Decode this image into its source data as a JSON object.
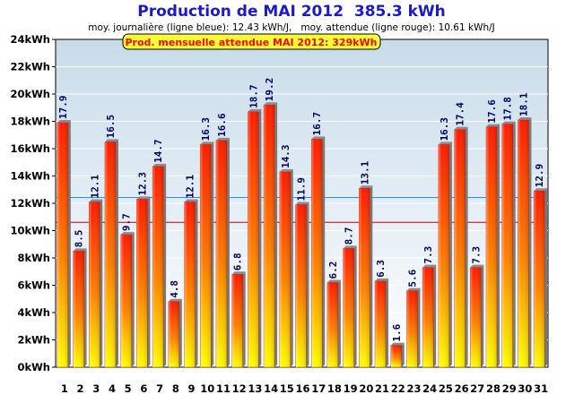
{
  "chart_data": {
    "type": "bar",
    "title": "Production de MAI 2012  385.3 kWh",
    "subtitle": "moy. journalière (ligne bleue): 12.43 kWh/J,   moy. attendue (ligne rouge): 10.61 kWh/J",
    "badge": "Prod. mensuelle attendue MAI 2012: 329kWh",
    "y_unit": "kWh",
    "ylim": [
      0,
      24
    ],
    "y_ticks": [
      "0kWh",
      "2kWh",
      "4kWh",
      "6kWh",
      "8kWh",
      "10kWh",
      "12kWh",
      "14kWh",
      "16kWh",
      "18kWh",
      "20kWh",
      "22kWh",
      "24kWh"
    ],
    "categories": [
      "1",
      "2",
      "3",
      "4",
      "5",
      "6",
      "7",
      "8",
      "9",
      "10",
      "11",
      "12",
      "13",
      "14",
      "15",
      "16",
      "17",
      "18",
      "19",
      "20",
      "21",
      "22",
      "23",
      "24",
      "25",
      "26",
      "27",
      "28",
      "29",
      "30",
      "31"
    ],
    "values": [
      17.9,
      8.5,
      12.1,
      16.5,
      9.7,
      12.3,
      14.7,
      4.8,
      12.1,
      16.3,
      16.6,
      6.8,
      18.7,
      19.2,
      14.3,
      11.9,
      16.7,
      6.2,
      8.7,
      13.1,
      6.3,
      1.6,
      5.6,
      7.3,
      16.3,
      17.4,
      7.3,
      17.6,
      17.8,
      18.1,
      12.9
    ],
    "value_labels": [
      "17.9",
      "8.5",
      "12.1",
      "16.5",
      "9.7",
      "12.3",
      "14.7",
      "4.8",
      "12.1",
      "16.3",
      "16.6",
      "6.8",
      "18.7",
      "19.2",
      "14.3",
      "11.9",
      "16.7",
      "6.2",
      "8.7",
      "13.1",
      "6.3",
      "1.6",
      "5.6",
      "7.3",
      "16.3",
      "17.4",
      "7.3",
      "17.6",
      "17.8",
      "18.1",
      "12.9"
    ],
    "reference_lines": [
      {
        "value": 12.43,
        "color": "#1e90ff"
      },
      {
        "value": 10.61,
        "color": "#cc0000"
      }
    ],
    "grid": true,
    "colors": {
      "title": "#1a1acc",
      "bar_top": "#ff1a00",
      "bar_bottom": "#ffff00",
      "badge_bg": "#ffff33",
      "badge_text": "#ff0000",
      "plot_bg_top": "#c8dcea",
      "plot_bg_bottom": "#ffffff"
    }
  }
}
